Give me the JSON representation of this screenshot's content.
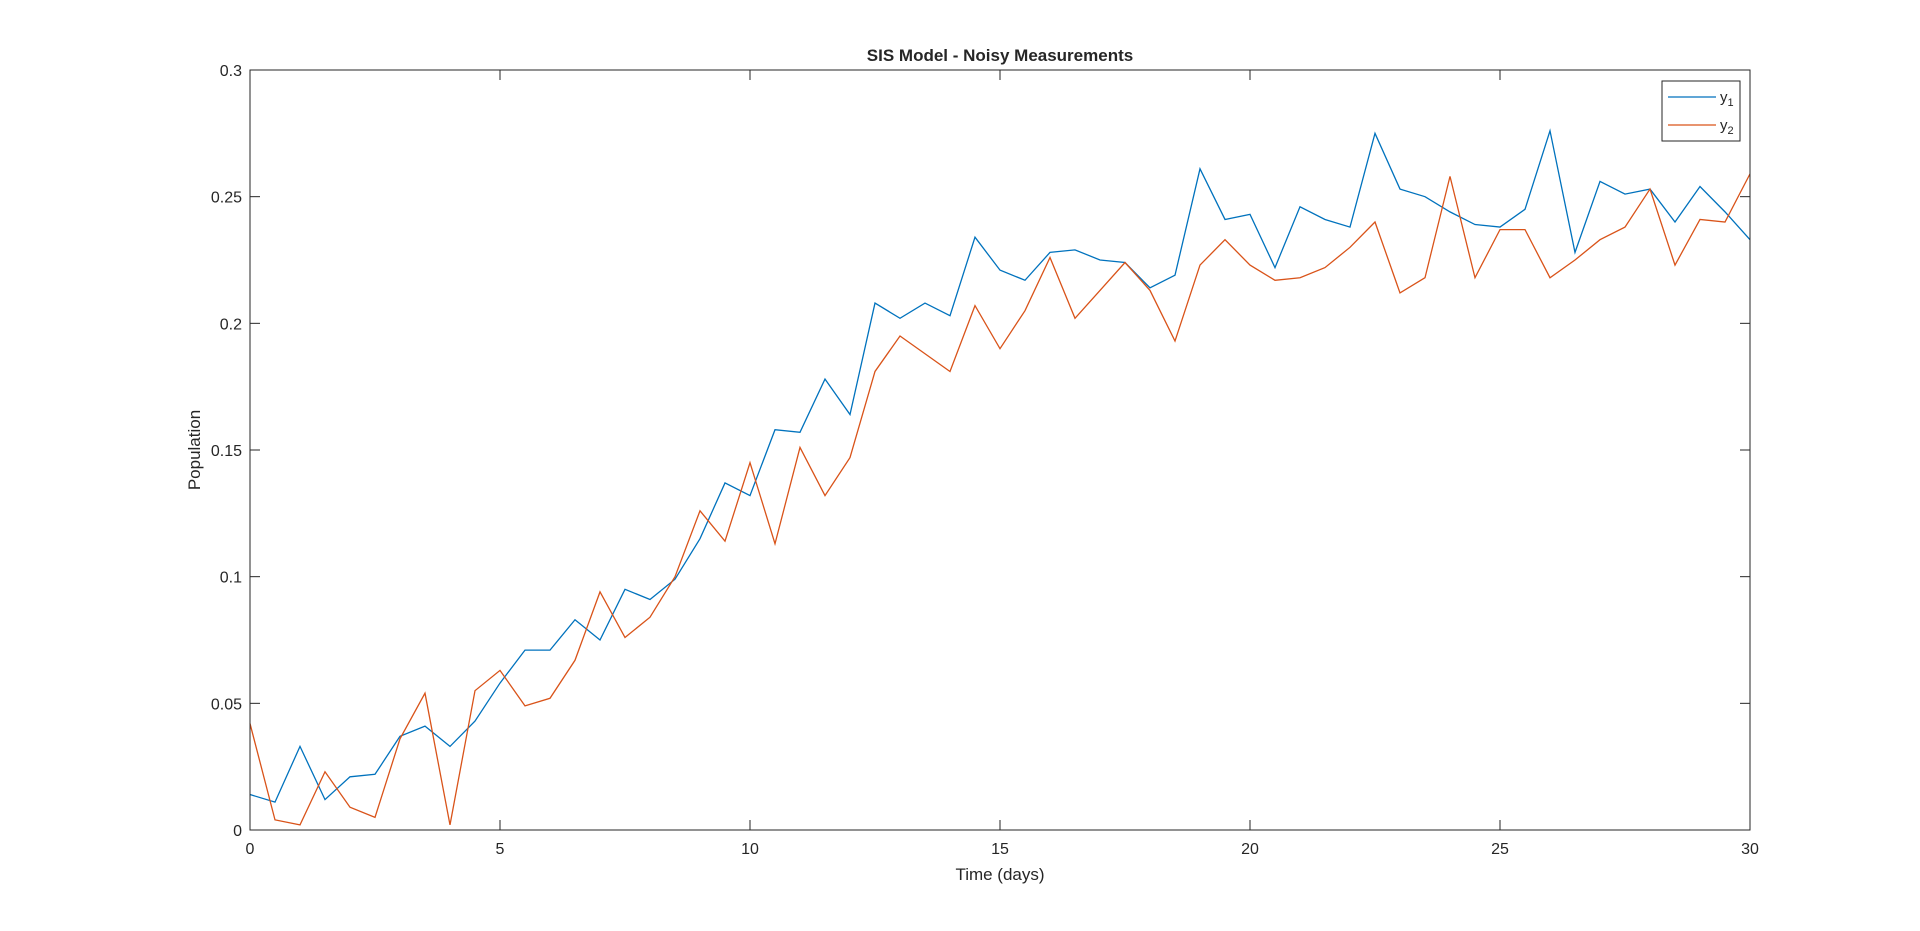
{
  "chart_data": {
    "type": "line",
    "title": "SIS Model - Noisy Measurements",
    "xlabel": "Time (days)",
    "ylabel": "Population",
    "xlim": [
      0,
      30
    ],
    "ylim": [
      0,
      0.3
    ],
    "x_ticks": [
      0,
      5,
      10,
      15,
      20,
      25,
      30
    ],
    "x_tick_labels": [
      "0",
      "5",
      "10",
      "15",
      "20",
      "25",
      "30"
    ],
    "y_ticks": [
      0,
      0.05,
      0.1,
      0.15,
      0.2,
      0.25,
      0.3
    ],
    "y_tick_labels": [
      "0",
      "0.05",
      "0.1",
      "0.15",
      "0.2",
      "0.25",
      "0.3"
    ],
    "grid": false,
    "legend_position": "top-right",
    "x": [
      0,
      0.5,
      1,
      1.5,
      2,
      2.5,
      3,
      3.5,
      4,
      4.5,
      5,
      5.5,
      6,
      6.5,
      7,
      7.5,
      8,
      8.5,
      9,
      9.5,
      10,
      10.5,
      11,
      11.5,
      12,
      12.5,
      13,
      13.5,
      14,
      14.5,
      15,
      15.5,
      16,
      16.5,
      17,
      17.5,
      18,
      18.5,
      19,
      19.5,
      20,
      20.5,
      21,
      21.5,
      22,
      22.5,
      23,
      23.5,
      24,
      24.5,
      25,
      25.5,
      26,
      26.5,
      27,
      27.5,
      28,
      28.5,
      29,
      29.5,
      30
    ],
    "series": [
      {
        "name": "y",
        "subscript": "1",
        "color": "#0072BD",
        "values": [
          0.014,
          0.011,
          0.033,
          0.012,
          0.021,
          0.022,
          0.037,
          0.041,
          0.033,
          0.043,
          0.058,
          0.071,
          0.071,
          0.083,
          0.075,
          0.095,
          0.091,
          0.099,
          0.115,
          0.137,
          0.132,
          0.158,
          0.157,
          0.178,
          0.164,
          0.208,
          0.202,
          0.208,
          0.203,
          0.234,
          0.221,
          0.217,
          0.228,
          0.229,
          0.225,
          0.224,
          0.214,
          0.219,
          0.261,
          0.241,
          0.243,
          0.222,
          0.246,
          0.241,
          0.238,
          0.275,
          0.253,
          0.25,
          0.244,
          0.239,
          0.238,
          0.245,
          0.276,
          0.228,
          0.256,
          0.251,
          0.253,
          0.24,
          0.254,
          0.244,
          0.233
        ]
      },
      {
        "name": "y",
        "subscript": "2",
        "color": "#D95319",
        "values": [
          0.042,
          0.004,
          0.002,
          0.023,
          0.009,
          0.005,
          0.036,
          0.054,
          0.002,
          0.055,
          0.063,
          0.049,
          0.052,
          0.067,
          0.094,
          0.076,
          0.084,
          0.1,
          0.126,
          0.114,
          0.145,
          0.113,
          0.151,
          0.132,
          0.147,
          0.181,
          0.195,
          0.188,
          0.181,
          0.207,
          0.19,
          0.205,
          0.226,
          0.202,
          0.213,
          0.224,
          0.213,
          0.193,
          0.223,
          0.233,
          0.223,
          0.217,
          0.218,
          0.222,
          0.23,
          0.24,
          0.212,
          0.218,
          0.258,
          0.218,
          0.237,
          0.237,
          0.218,
          0.225,
          0.233,
          0.238,
          0.253,
          0.223,
          0.241,
          0.24,
          0.259
        ]
      }
    ]
  }
}
